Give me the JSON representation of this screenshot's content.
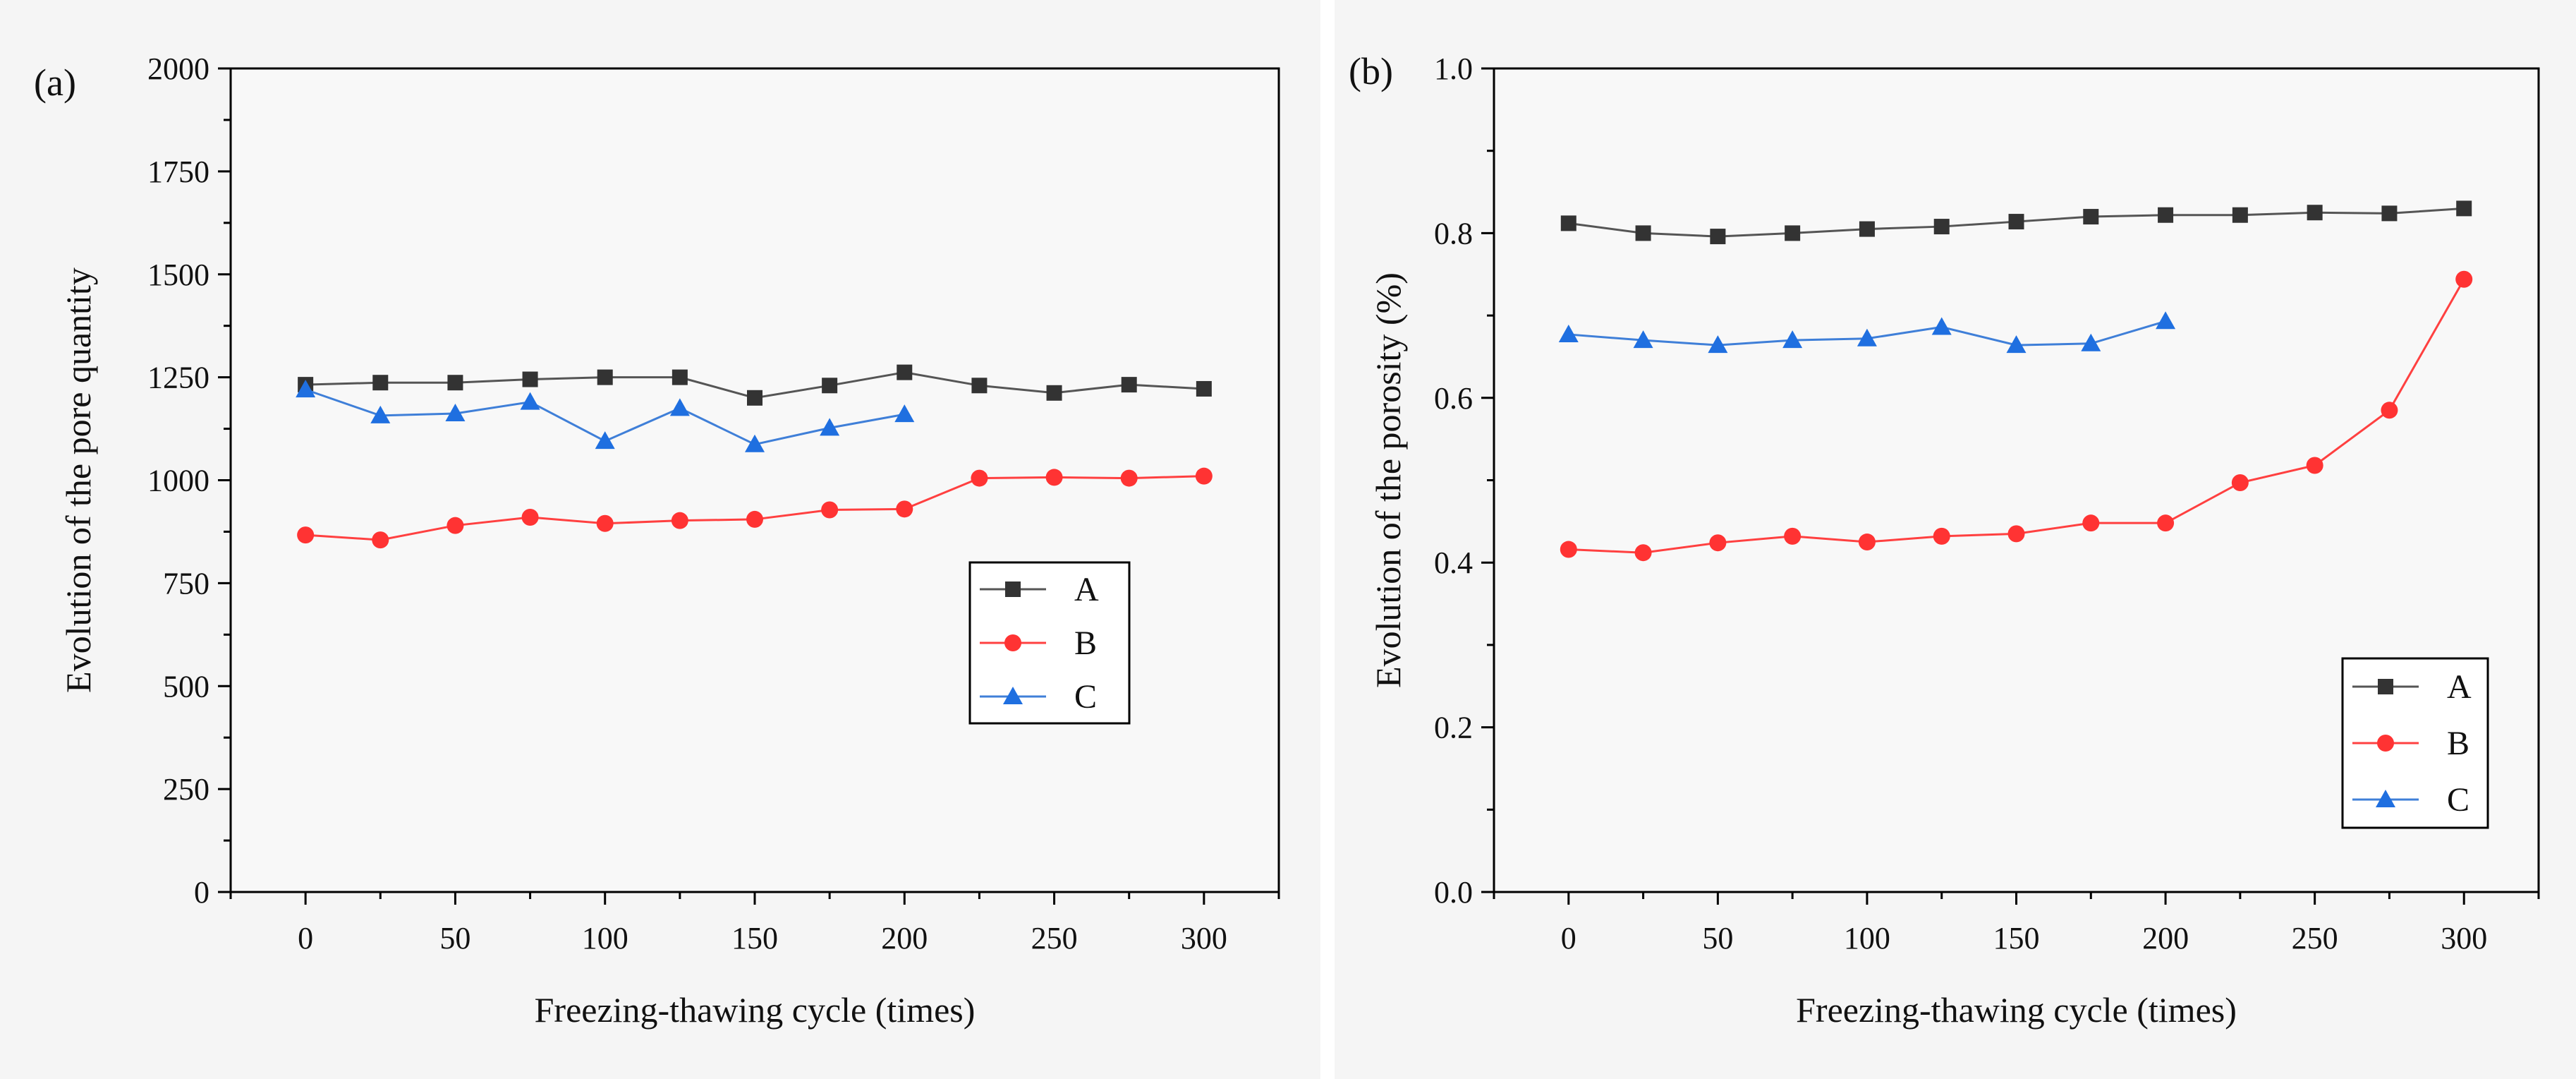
{
  "chart_data": [
    {
      "type": "line",
      "panel_label": "(a)",
      "title": "",
      "xlabel": "Freezing-thawing cycle (times)",
      "ylabel": "Evolution of the pore quantity",
      "xlim": [
        -25,
        325
      ],
      "ylim": [
        0,
        2000
      ],
      "xticks": [
        0,
        50,
        100,
        150,
        200,
        250,
        300
      ],
      "yticks": [
        0,
        250,
        500,
        750,
        1000,
        1250,
        1500,
        1750,
        2000
      ],
      "xtick_labels": [
        "0",
        "50",
        "100",
        "150",
        "200",
        "250",
        "300"
      ],
      "ytick_labels": [
        "0",
        "250",
        "500",
        "750",
        "1000",
        "1250",
        "1500",
        "1750",
        "2000"
      ],
      "legend_position": "center-right",
      "series": [
        {
          "name": "A",
          "marker": "square",
          "color": "#555555",
          "marker_color": "#333333",
          "x": [
            0,
            25,
            50,
            75,
            100,
            125,
            150,
            175,
            200,
            225,
            250,
            275,
            300
          ],
          "y": [
            1232,
            1237,
            1237,
            1245,
            1250,
            1250,
            1200,
            1230,
            1262,
            1230,
            1212,
            1232,
            1222
          ]
        },
        {
          "name": "B",
          "marker": "circle",
          "color": "#ff4040",
          "marker_color": "#ff3333",
          "x": [
            0,
            25,
            50,
            75,
            100,
            125,
            150,
            175,
            200,
            225,
            250,
            275,
            300
          ],
          "y": [
            867,
            855,
            890,
            910,
            895,
            902,
            905,
            928,
            930,
            1005,
            1007,
            1005,
            1010
          ]
        },
        {
          "name": "C",
          "marker": "triangle",
          "color": "#3f7fd8",
          "marker_color": "#1f6fe0",
          "x": [
            0,
            25,
            50,
            75,
            100,
            125,
            150,
            175,
            200
          ],
          "y": [
            1220,
            1157,
            1162,
            1190,
            1095,
            1175,
            1087,
            1127,
            1160
          ]
        }
      ]
    },
    {
      "type": "line",
      "panel_label": "(b)",
      "title": "",
      "xlabel": "Freezing-thawing cycle (times)",
      "ylabel": "Evolution of the porosity (%)",
      "xlim": [
        -25,
        325
      ],
      "ylim": [
        0,
        1.0
      ],
      "xticks": [
        0,
        50,
        100,
        150,
        200,
        250,
        300
      ],
      "yticks": [
        0,
        0.2,
        0.4,
        0.6,
        0.8,
        1.0
      ],
      "xtick_labels": [
        "0",
        "50",
        "100",
        "150",
        "200",
        "250",
        "300"
      ],
      "ytick_labels": [
        "0.0",
        "0.2",
        "0.4",
        "0.6",
        "0.8",
        "1.0"
      ],
      "legend_position": "bottom-right",
      "series": [
        {
          "name": "A",
          "marker": "square",
          "color": "#555555",
          "marker_color": "#333333",
          "x": [
            0,
            25,
            50,
            75,
            100,
            125,
            150,
            175,
            200,
            225,
            250,
            275,
            300
          ],
          "y": [
            0.812,
            0.8,
            0.796,
            0.8,
            0.805,
            0.808,
            0.814,
            0.82,
            0.822,
            0.822,
            0.825,
            0.824,
            0.83
          ]
        },
        {
          "name": "B",
          "marker": "circle",
          "color": "#ff4040",
          "marker_color": "#ff3333",
          "x": [
            0,
            25,
            50,
            75,
            100,
            125,
            150,
            175,
            200,
            225,
            250,
            275,
            300
          ],
          "y": [
            0.416,
            0.412,
            0.424,
            0.432,
            0.425,
            0.432,
            0.435,
            0.448,
            0.448,
            0.497,
            0.518,
            0.585,
            0.744
          ]
        },
        {
          "name": "C",
          "marker": "triangle",
          "color": "#3f7fd8",
          "marker_color": "#1f6fe0",
          "x": [
            0,
            25,
            50,
            75,
            100,
            125,
            150,
            175,
            200
          ],
          "y": [
            0.677,
            0.67,
            0.664,
            0.67,
            0.672,
            0.686,
            0.664,
            0.666,
            0.693
          ]
        }
      ]
    }
  ]
}
